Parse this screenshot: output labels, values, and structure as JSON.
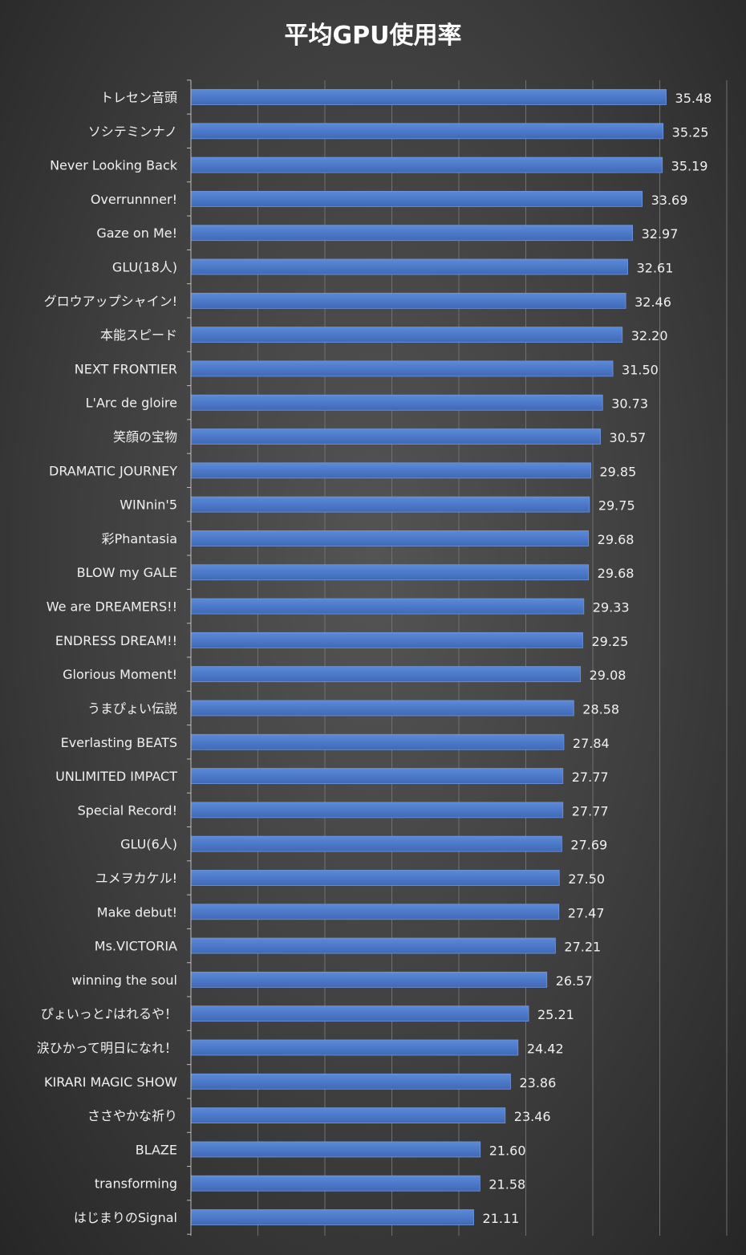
{
  "chart_data": {
    "type": "bar",
    "orientation": "horizontal",
    "title": "平均GPU使用率",
    "xlabel": "",
    "ylabel": "",
    "xlim": [
      0,
      40
    ],
    "grid": true,
    "legend": "none",
    "bar_color": "#4472c4",
    "bar_color_light": "#5b8ad8",
    "categories": [
      "トレセン音頭",
      "ソシテミンナノ",
      "Never Looking Back",
      "Overrunnner!",
      "Gaze on Me!",
      "GLU(18人)",
      "グロウアップシャイン!",
      "本能スピード",
      "NEXT FRONTIER",
      "L'Arc de gloire",
      "笑顔の宝物",
      "DRAMATIC JOURNEY",
      "WINnin'5",
      "彩Phantasia",
      "BLOW my GALE",
      "We are DREAMERS!!",
      "ENDRESS DREAM!!",
      "Glorious Moment!",
      "うまぴょい伝説",
      "Everlasting BEATS",
      "UNLIMITED IMPACT",
      "Special Record!",
      "GLU(6人)",
      "ユメヲカケル!",
      "Make debut!",
      "Ms.VICTORIA",
      "winning the soul",
      "ぴょいっと♪はれるや！",
      "涙ひかって明日になれ！",
      "KIRARI MAGIC SHOW",
      "ささやかな祈り",
      "BLAZE",
      "transforming",
      "はじまりのSignal"
    ],
    "values": [
      35.48,
      35.25,
      35.19,
      33.69,
      32.97,
      32.61,
      32.46,
      32.2,
      31.5,
      30.73,
      30.57,
      29.85,
      29.75,
      29.68,
      29.68,
      29.33,
      29.25,
      29.08,
      28.58,
      27.84,
      27.77,
      27.77,
      27.69,
      27.5,
      27.47,
      27.21,
      26.57,
      25.21,
      24.42,
      23.86,
      23.46,
      21.6,
      21.58,
      21.11
    ],
    "value_labels": [
      "35.48",
      "35.25",
      "35.19",
      "33.69",
      "32.97",
      "32.61",
      "32.46",
      "32.20",
      "31.50",
      "30.73",
      "30.57",
      "29.85",
      "29.75",
      "29.68",
      "29.68",
      "29.33",
      "29.25",
      "29.08",
      "28.58",
      "27.84",
      "27.77",
      "27.77",
      "27.69",
      "27.50",
      "27.47",
      "27.21",
      "26.57",
      "25.21",
      "24.42",
      "23.86",
      "23.46",
      "21.60",
      "21.58",
      "21.11"
    ]
  }
}
